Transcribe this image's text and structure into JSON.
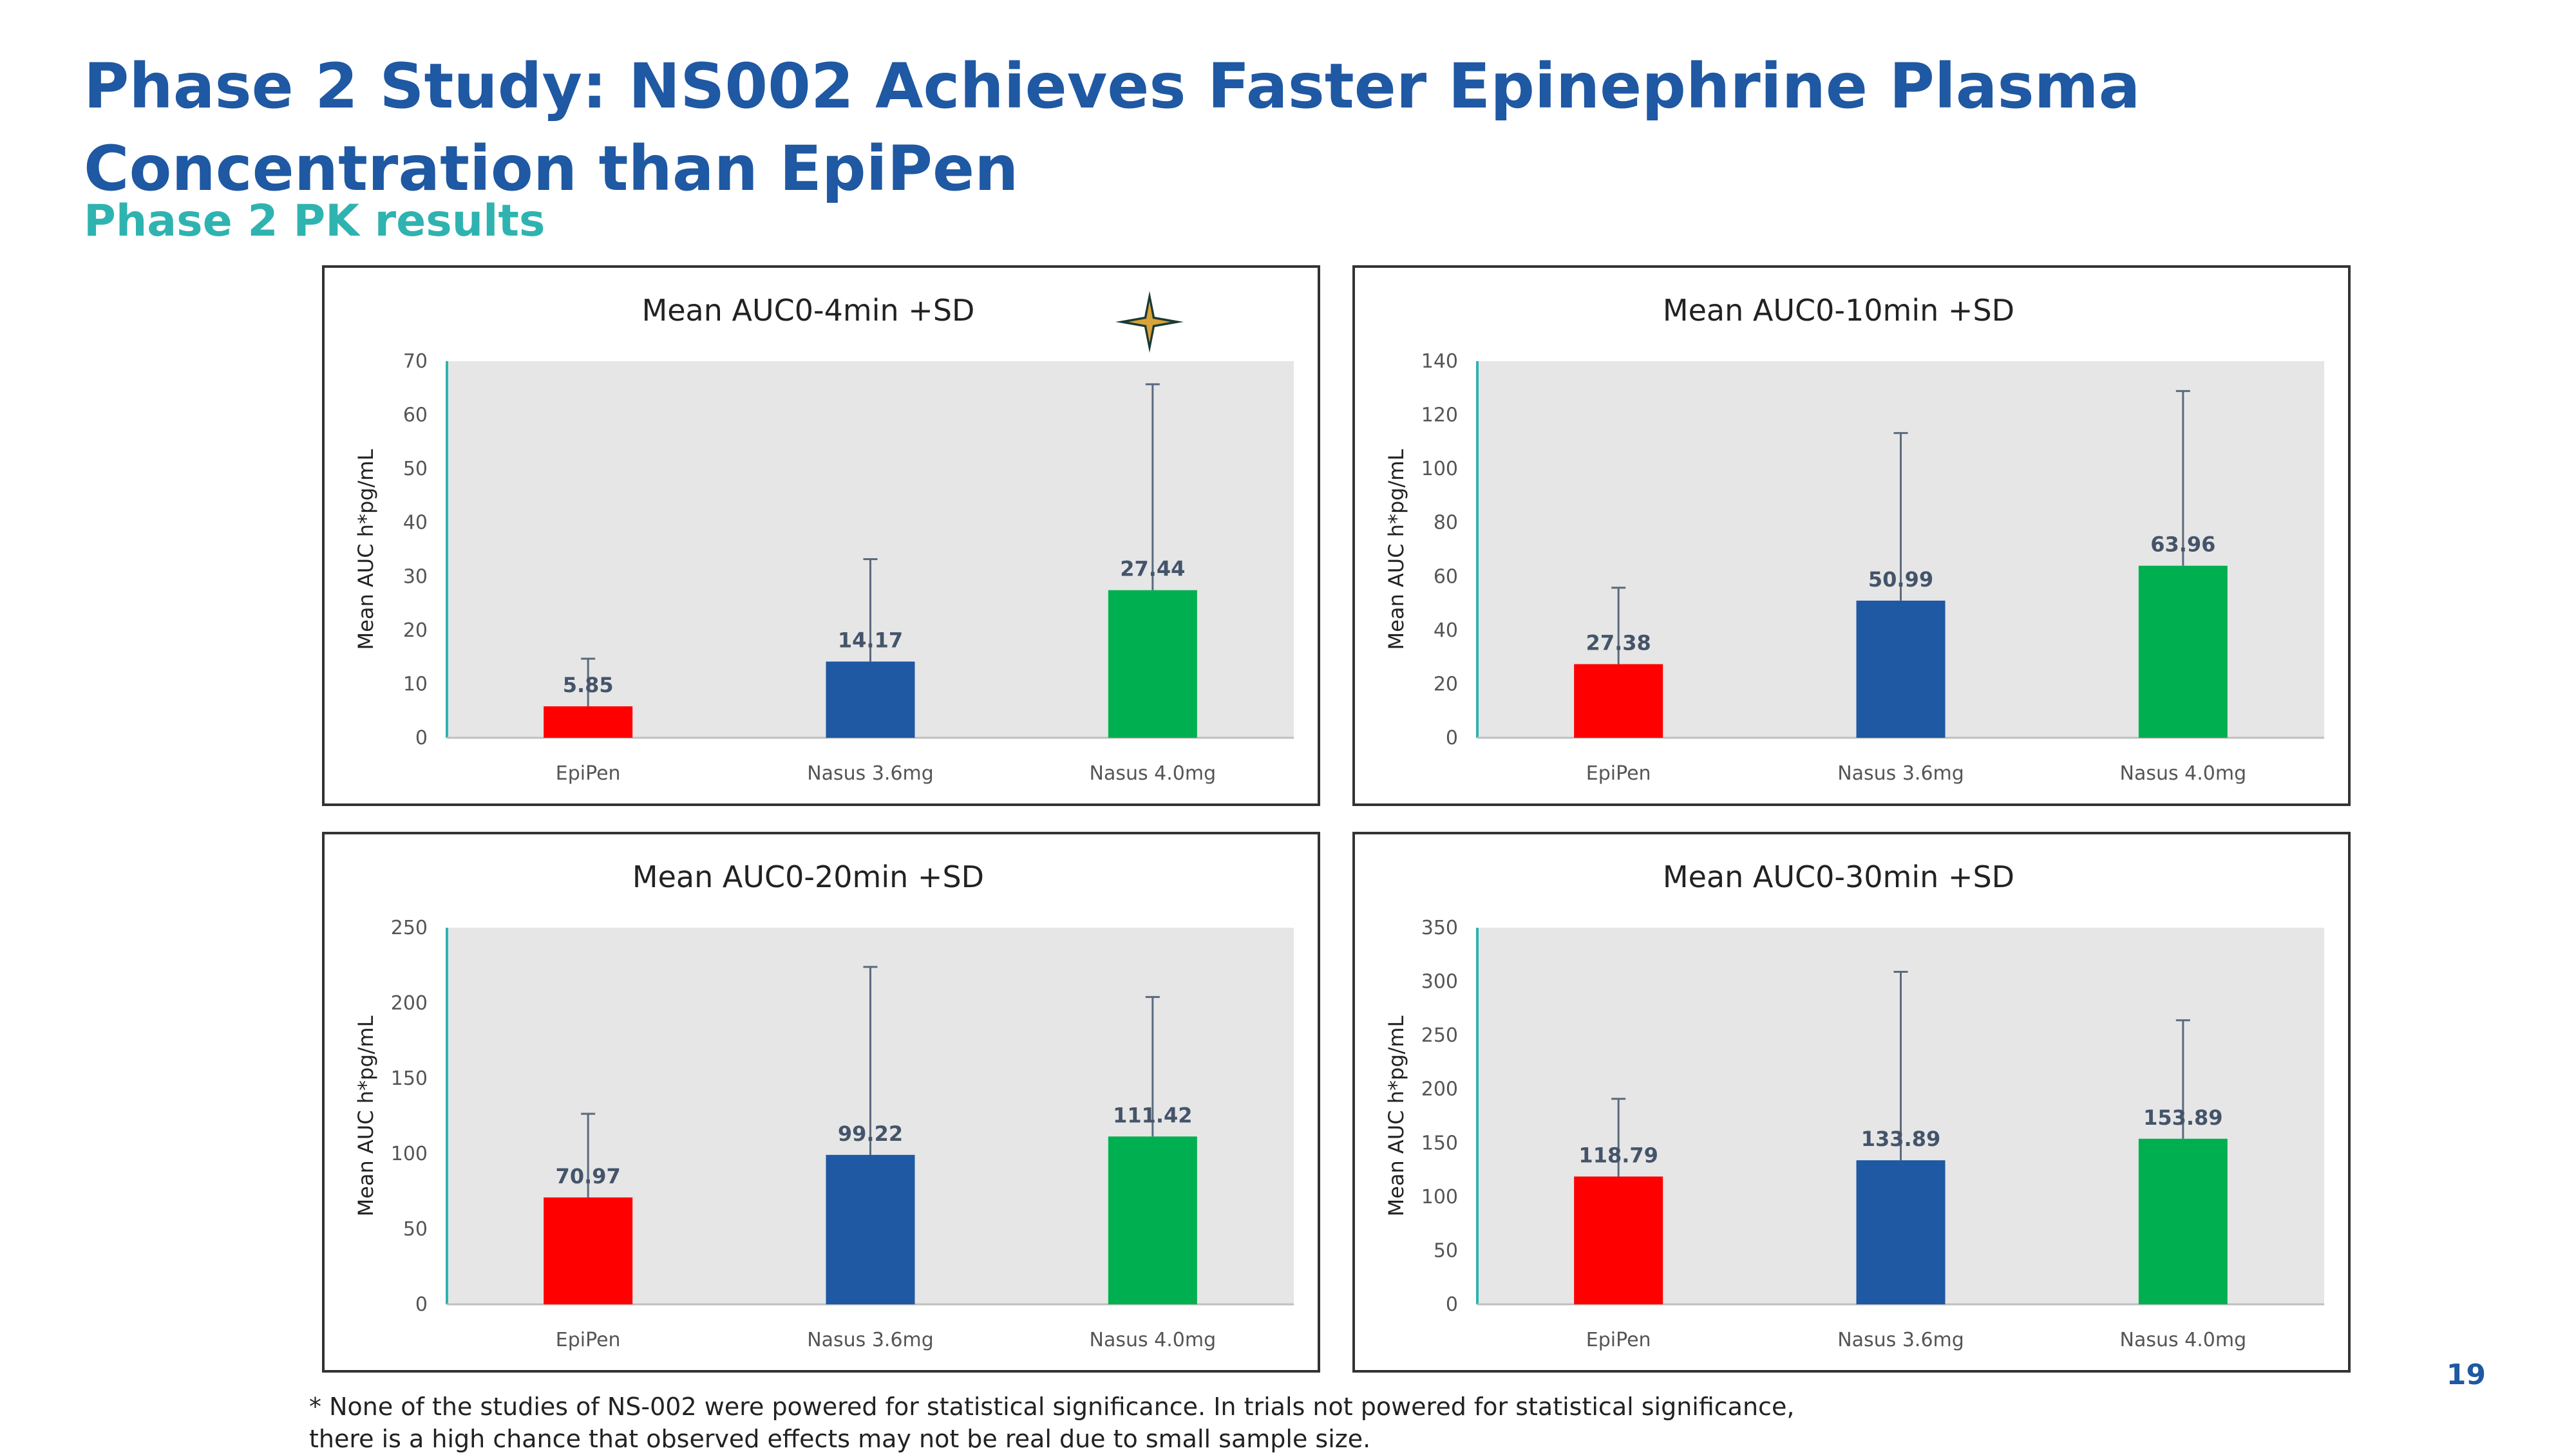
{
  "slide": {
    "title": "Phase 2 Study: NS002 Achieves Faster Epinephrine Plasma Concentration than EpiPen",
    "subtitle": "Phase 2 PK results",
    "page_number": "19",
    "footnote": "* None of the studies of NS-002 were powered for statistical significance. In trials not powered for statistical significance, there is a high chance that observed effects may not be real due to small sample size.",
    "colors": {
      "title": "#1f58a3",
      "subtitle": "#2fb3b0",
      "epipen": "#ff0000",
      "nasus36": "#1f58a3",
      "nasus40": "#00b050",
      "plot_bg": "#e6e6e6",
      "axis": "#2fb3b0"
    },
    "icons": [
      "star-icon"
    ]
  },
  "chart_data": [
    {
      "type": "bar",
      "title": "Mean AUC0-4min +SD",
      "ylabel": "Mean AUC h*pg/mL",
      "xlabel": "",
      "categories": [
        "EpiPen",
        "Nasus 3.6mg",
        "Nasus 4.0mg"
      ],
      "values": [
        5.85,
        14.17,
        27.44
      ],
      "value_labels": [
        "5.85",
        "14.17",
        "27.44"
      ],
      "sd_upper": [
        14.7,
        33.2,
        65.7
      ],
      "ylim": [
        0,
        70
      ],
      "yticks": [
        0,
        10,
        20,
        30,
        40,
        50,
        60,
        70
      ],
      "grid": false,
      "legend": "none"
    },
    {
      "type": "bar",
      "title": "Mean AUC0-10min +SD",
      "ylabel": "Mean AUC h*pg/mL",
      "xlabel": "",
      "categories": [
        "EpiPen",
        "Nasus 3.6mg",
        "Nasus 4.0mg"
      ],
      "values": [
        27.38,
        50.99,
        63.96
      ],
      "value_labels": [
        "27.38",
        "50.99",
        "63.96"
      ],
      "sd_upper": [
        55.8,
        113.3,
        128.9
      ],
      "ylim": [
        0,
        140
      ],
      "yticks": [
        0,
        20,
        40,
        60,
        80,
        100,
        120,
        140
      ],
      "grid": false,
      "legend": "none"
    },
    {
      "type": "bar",
      "title": "Mean AUC0-20min +SD",
      "ylabel": "Mean AUC h*pg/mL",
      "xlabel": "",
      "categories": [
        "EpiPen",
        "Nasus 3.6mg",
        "Nasus 4.0mg"
      ],
      "values": [
        70.97,
        99.22,
        111.42
      ],
      "value_labels": [
        "70.97",
        "99.22",
        "111.42"
      ],
      "sd_upper": [
        126.5,
        224.0,
        204.0
      ],
      "ylim": [
        0,
        250
      ],
      "yticks": [
        0,
        50,
        100,
        150,
        200,
        250
      ],
      "grid": false,
      "legend": "none"
    },
    {
      "type": "bar",
      "title": "Mean AUC0-30min +SD",
      "ylabel": "Mean AUC h*pg/mL",
      "xlabel": "",
      "categories": [
        "EpiPen",
        "Nasus 3.6mg",
        "Nasus 4.0mg"
      ],
      "values": [
        118.79,
        133.89,
        153.89
      ],
      "value_labels": [
        "118.79",
        "133.89",
        "153.89"
      ],
      "sd_upper": [
        191.0,
        309.0,
        264.0
      ],
      "ylim": [
        0,
        350
      ],
      "yticks": [
        0,
        50,
        100,
        150,
        200,
        250,
        300,
        350
      ],
      "grid": false,
      "legend": "none"
    }
  ]
}
